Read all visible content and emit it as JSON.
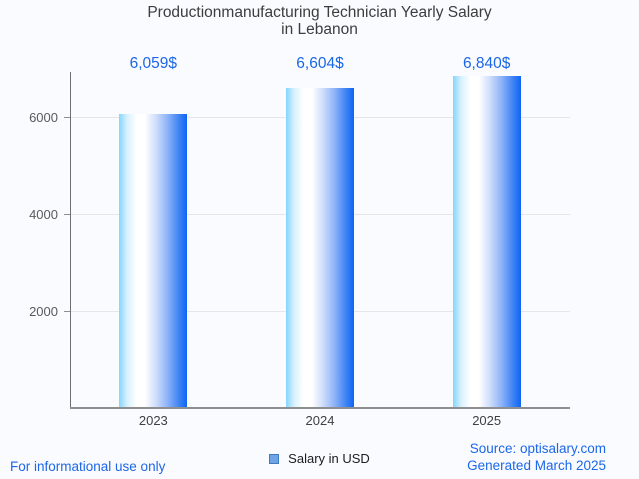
{
  "title": {
    "line1": "Productionmanufacturing Technician Yearly Salary",
    "line2": "in Lebanon"
  },
  "chart_data": {
    "type": "bar",
    "title": "Productionmanufacturing Technician Yearly Salary in Lebanon",
    "categories": [
      "2023",
      "2024",
      "2025"
    ],
    "series": [
      {
        "name": "Salary in USD",
        "values": [
          6059,
          6604,
          6840
        ],
        "value_labels": [
          "6,059$",
          "6,604$",
          "6,840$"
        ]
      }
    ],
    "xlabel": "",
    "ylabel": "",
    "ylim": [
      0,
      6928
    ],
    "yticks": [
      2000,
      4000,
      6000
    ],
    "grid": true,
    "legend_position": "bottom",
    "annotation_color": "#1a66e8",
    "bar_gradient": [
      "#85d5fc",
      "#ffffff",
      "#ccdcfb",
      "#0d65f7"
    ]
  },
  "legend": {
    "label": "Salary in USD",
    "marker_color": "#6fa4e4"
  },
  "footer": {
    "disclaimer": "For informational use only",
    "source": "Source: optisalary.com",
    "generated": "Generated March 2025"
  },
  "colors": {
    "background": "#fafbfe",
    "title_text": "#3d3d3d",
    "axis_text": "#5a5a5a",
    "gridline": "#e4e7ea",
    "footer_link": "#1b67e8"
  }
}
